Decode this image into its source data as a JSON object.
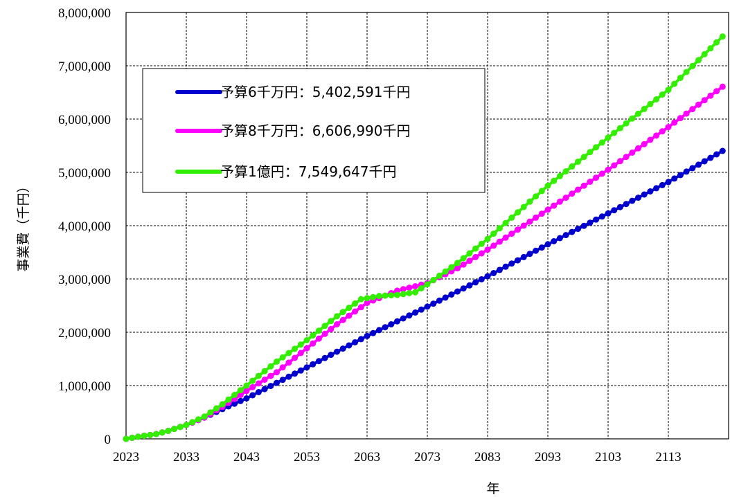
{
  "chart_data": {
    "type": "line",
    "xlabel": "年",
    "ylabel": "事業費（千円）",
    "xlim": [
      2023,
      2122
    ],
    "ylim": [
      0,
      8000000
    ],
    "x_ticks": [
      2023,
      2033,
      2043,
      2053,
      2063,
      2073,
      2083,
      2093,
      2103,
      2113
    ],
    "x_tick_labels": [
      "2023",
      "2033",
      "2043",
      "2053",
      "2063",
      "2073",
      "2083",
      "2093",
      "2103",
      "2113"
    ],
    "y_ticks": [
      0,
      1000000,
      2000000,
      3000000,
      4000000,
      5000000,
      6000000,
      7000000,
      8000000
    ],
    "y_tick_labels": [
      "0",
      "1,000,000",
      "2,000,000",
      "3,000,000",
      "4,000,000",
      "5,000,000",
      "6,000,000",
      "7,000,000",
      "8,000,000"
    ],
    "grid": true,
    "legend_position": "top-left",
    "series": [
      {
        "name": "予算6千万円：5,402,591千円",
        "color": "#0000cc",
        "points": [
          [
            2023,
            0
          ],
          [
            2025,
            40000
          ],
          [
            2028,
            90000
          ],
          [
            2030,
            150000
          ],
          [
            2033,
            260000
          ],
          [
            2036,
            400000
          ],
          [
            2039,
            560000
          ],
          [
            2043,
            760000
          ],
          [
            2053,
            1340000
          ],
          [
            2063,
            1930000
          ],
          [
            2073,
            2480000
          ],
          [
            2083,
            3050000
          ],
          [
            2093,
            3650000
          ],
          [
            2103,
            4230000
          ],
          [
            2113,
            4820000
          ],
          [
            2122,
            5402591
          ]
        ]
      },
      {
        "name": "予算8千万円：6,606,990千円",
        "color": "#ff00ff",
        "points": [
          [
            2023,
            0
          ],
          [
            2025,
            40000
          ],
          [
            2028,
            90000
          ],
          [
            2030,
            150000
          ],
          [
            2033,
            260000
          ],
          [
            2036,
            400000
          ],
          [
            2039,
            600000
          ],
          [
            2043,
            900000
          ],
          [
            2048,
            1250000
          ],
          [
            2053,
            1700000
          ],
          [
            2058,
            2150000
          ],
          [
            2063,
            2550000
          ],
          [
            2068,
            2780000
          ],
          [
            2073,
            2920000
          ],
          [
            2078,
            3200000
          ],
          [
            2083,
            3550000
          ],
          [
            2093,
            4300000
          ],
          [
            2103,
            5050000
          ],
          [
            2113,
            5850000
          ],
          [
            2122,
            6606990
          ]
        ]
      },
      {
        "name": "予算1億円：7,549,647千円",
        "color": "#33ee00",
        "points": [
          [
            2023,
            0
          ],
          [
            2025,
            40000
          ],
          [
            2028,
            90000
          ],
          [
            2030,
            150000
          ],
          [
            2033,
            260000
          ],
          [
            2036,
            420000
          ],
          [
            2039,
            650000
          ],
          [
            2043,
            1000000
          ],
          [
            2048,
            1450000
          ],
          [
            2053,
            1850000
          ],
          [
            2058,
            2300000
          ],
          [
            2062,
            2620000
          ],
          [
            2065,
            2680000
          ],
          [
            2068,
            2700000
          ],
          [
            2071,
            2750000
          ],
          [
            2073,
            2900000
          ],
          [
            2078,
            3300000
          ],
          [
            2083,
            3750000
          ],
          [
            2093,
            4750000
          ],
          [
            2103,
            5650000
          ],
          [
            2113,
            6550000
          ],
          [
            2122,
            7549647
          ]
        ]
      }
    ]
  }
}
